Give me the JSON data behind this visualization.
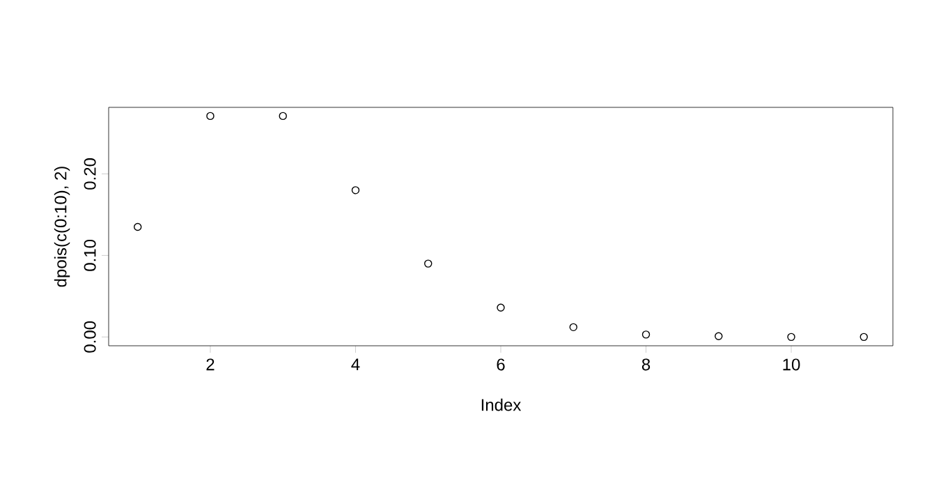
{
  "chart_data": {
    "type": "scatter",
    "xlabel": "Index",
    "ylabel": "dpois(c(0:10), 2)",
    "x": [
      1,
      2,
      3,
      4,
      5,
      6,
      7,
      8,
      9,
      10,
      11
    ],
    "values": [
      0.135,
      0.271,
      0.271,
      0.18,
      0.09,
      0.036,
      0.012,
      0.003,
      0.001,
      0.0,
      0.0
    ],
    "color": "#000000",
    "marker": "circle",
    "grid": false,
    "xlim": [
      0.6,
      11.4
    ],
    "ylim": [
      -0.0108,
      0.2816
    ],
    "xticks": [
      2,
      4,
      6,
      8,
      10
    ],
    "yticks": [
      {
        "value": 0,
        "label": "0.00"
      },
      {
        "value": 0.1,
        "label": "0.10"
      },
      {
        "value": 0.2,
        "label": "0.20"
      }
    ]
  }
}
